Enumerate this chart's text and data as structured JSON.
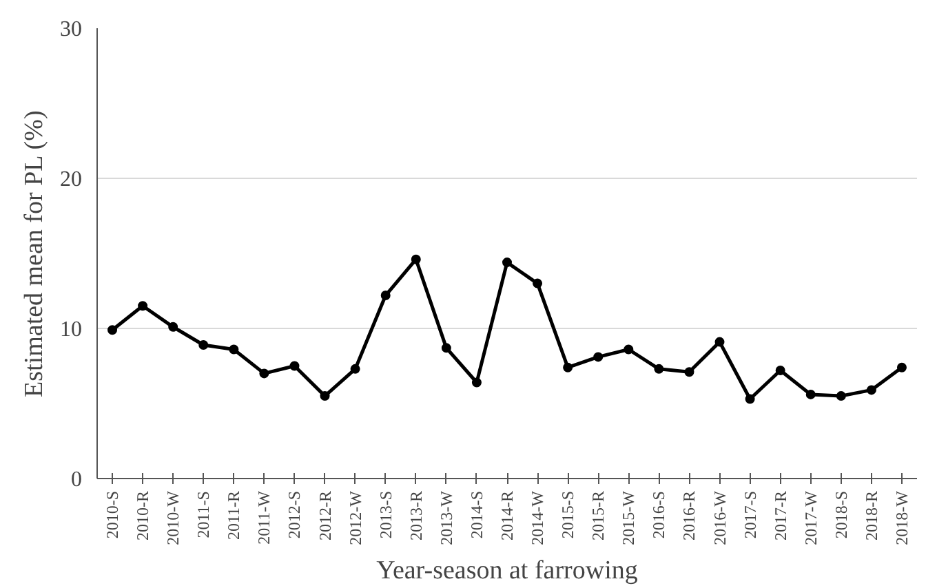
{
  "chart_data": {
    "type": "line",
    "xlabel": "Year-season at farrowing",
    "ylabel": "Estimated mean for PL (%)",
    "categories": [
      "2010-S",
      "2010-R",
      "2010-W",
      "2011-S",
      "2011-R",
      "2011-W",
      "2012-S",
      "2012-R",
      "2012-W",
      "2013-S",
      "2013-R",
      "2013-W",
      "2014-S",
      "2014-R",
      "2014-W",
      "2015-S",
      "2015-R",
      "2015-W",
      "2016-S",
      "2016-R",
      "2016-W",
      "2017-S",
      "2017-R",
      "2017-W",
      "2018-S",
      "2018-R",
      "2018-W"
    ],
    "series": [
      {
        "color": "#000000",
        "values": [
          9.9,
          11.5,
          10.1,
          8.9,
          8.6,
          7.0,
          7.5,
          5.5,
          7.3,
          12.2,
          14.6,
          8.7,
          6.4,
          14.4,
          13.0,
          7.4,
          8.1,
          8.6,
          7.3,
          7.1,
          9.1,
          5.3,
          7.2,
          5.6,
          5.5,
          5.9,
          7.4
        ]
      }
    ],
    "ylim": [
      0,
      30
    ],
    "yticks": [
      0,
      10,
      20,
      30
    ],
    "grid": "y",
    "marker": "circle",
    "line_style": "solid"
  }
}
